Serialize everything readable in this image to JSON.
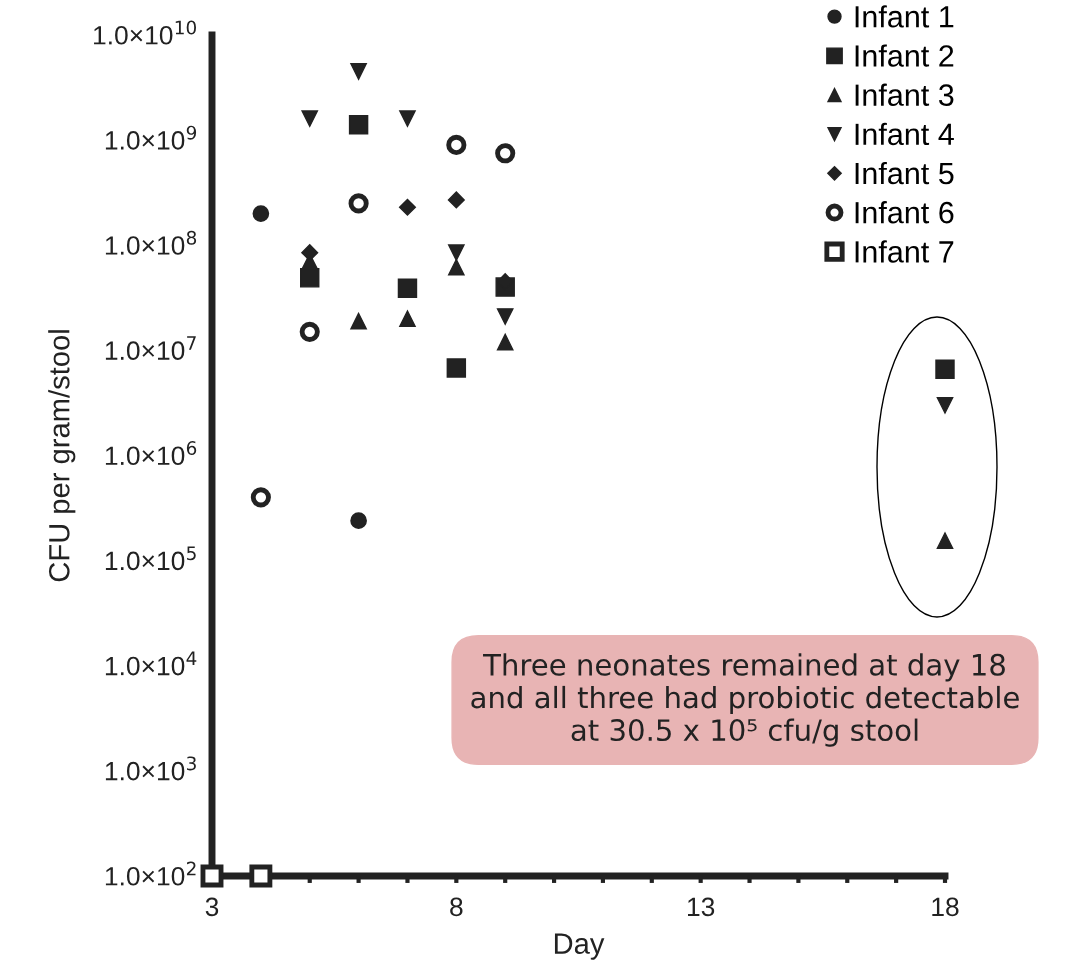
{
  "chart_data": {
    "type": "scatter",
    "xlabel": "Day",
    "ylabel": "CFU per gram/stool",
    "log": "y",
    "xlim": [
      3,
      18
    ],
    "xticks": [
      3,
      {
        "value": 4,
        "label": null
      },
      {
        "value": 5,
        "label": null
      },
      {
        "value": 6,
        "label": null
      },
      {
        "value": 7,
        "label": null
      },
      8,
      {
        "value": 9,
        "label": null
      },
      {
        "value": 10,
        "label": null
      },
      {
        "value": 11,
        "label": null
      },
      {
        "value": 12,
        "label": null
      },
      13,
      {
        "value": 14,
        "label": null
      },
      {
        "value": 15,
        "label": null
      },
      {
        "value": 16,
        "label": null
      },
      {
        "value": 17,
        "label": null
      },
      18
    ],
    "ylim": [
      100,
      10000000000
    ],
    "yticks": [
      {
        "value": 100,
        "label": "1.0×10$^{2}$"
      },
      {
        "value": 1000,
        "label": "1.0×10$^{3}$"
      },
      {
        "value": 10000,
        "label": "1.0×10$^{4}$"
      },
      {
        "value": 100000,
        "label": "1.0×10$^{5}$"
      },
      {
        "value": 1000000,
        "label": "1.0×10$^{6}$"
      },
      {
        "value": 10000000,
        "label": "1.0×10$^{7}$"
      },
      {
        "value": 100000000,
        "label": "1.0×10$^{8}$"
      },
      {
        "value": 1000000000,
        "label": "1.0×10$^{9}$"
      },
      {
        "value": 10000000000,
        "label": "1.0×10$^{10}$"
      }
    ],
    "grid": false,
    "legend": "top right",
    "series": [
      {
        "name": "Infant 1",
        "color": "#222222",
        "marker": "circle",
        "x": [
          4,
          6
        ],
        "values": [
          200000000,
          240000
        ]
      },
      {
        "name": "Infant 2",
        "color": "#222222",
        "marker": "square",
        "x": [
          5,
          6,
          7,
          8,
          9,
          18
        ],
        "values": [
          49000000,
          1400000000,
          39000000,
          6800000,
          40000000,
          6600000
        ]
      },
      {
        "name": "Infant 3",
        "color": "#222222",
        "marker": "triangle",
        "x": [
          5,
          6,
          7,
          8,
          9,
          18
        ],
        "values": [
          70000000,
          19000000,
          20000000,
          62000000,
          12000000,
          155000
        ]
      },
      {
        "name": "Infant 4",
        "color": "#222222",
        "marker": "triangle_down",
        "x": [
          5,
          6,
          7,
          8,
          9,
          18
        ],
        "values": [
          1600000000,
          4500000000,
          1600000000,
          85000000,
          21000000,
          3000000
        ]
      },
      {
        "name": "Infant 5",
        "color": "#222222",
        "marker": "diamond",
        "x": [
          5,
          7,
          8,
          9
        ],
        "values": [
          85000000,
          230000000,
          270000000,
          45000000
        ]
      },
      {
        "name": "Infant 6",
        "color": "#222222",
        "marker": "circle_open",
        "x": [
          4,
          5,
          6,
          8,
          9
        ],
        "values": [
          400000,
          15000000,
          250000000,
          900000000,
          750000000
        ]
      },
      {
        "name": "Infant 7",
        "color": "#222222",
        "marker": "square_open",
        "x": [
          3,
          4
        ],
        "values": [
          100,
          100
        ]
      }
    ],
    "annotations": [
      "Three neonates remained at day 18\nand all three had probiotic detectable\nat 30.5 x 10⁵ cfu/g stool"
    ]
  }
}
